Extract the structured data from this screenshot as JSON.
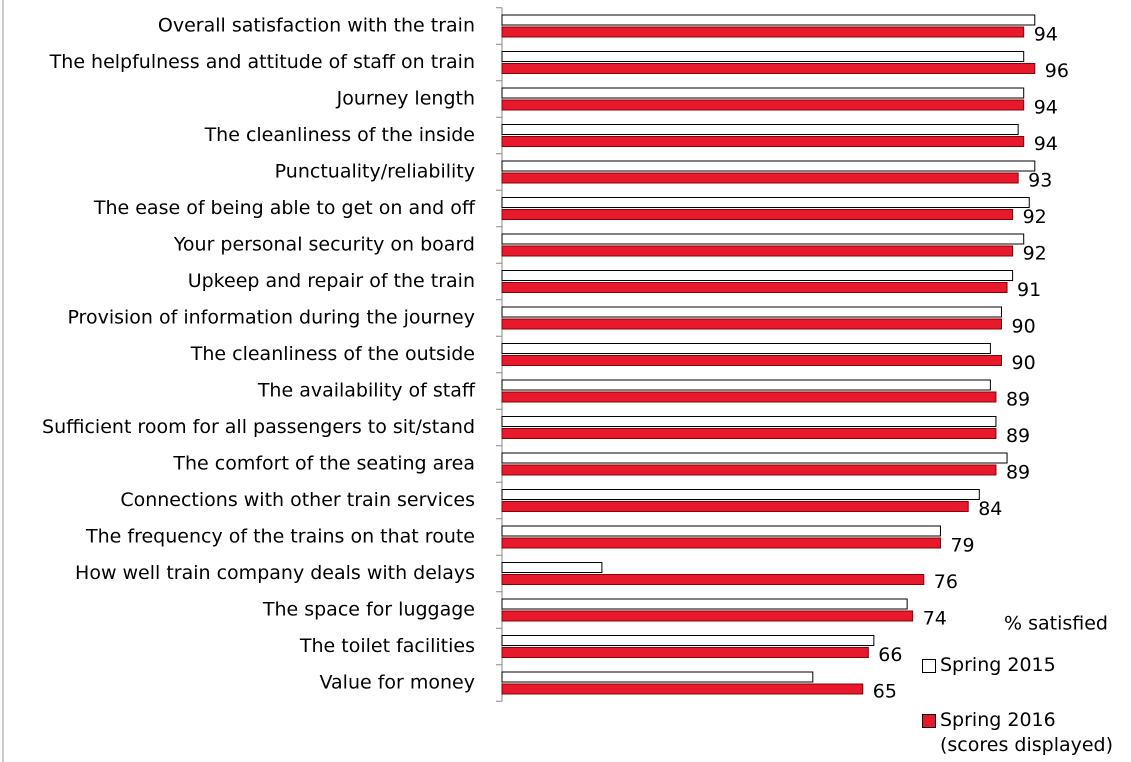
{
  "chart_data": {
    "type": "hbar",
    "categories": [
      "Overall satisfaction with the train",
      "The helpfulness and attitude of staff on train",
      "Journey length",
      "The cleanliness of the inside",
      "Punctuality/reliability",
      "The ease of being able to get on and off",
      "Your personal security on board",
      "Upkeep and repair of the train",
      "Provision of information during the journey",
      "The cleanliness of the outside",
      "The availability of staff",
      "Sufficient room for all passengers to sit/stand",
      "The comfort of the seating area",
      "Connections with other train services",
      "The frequency of the trains on that route",
      "How well train company deals with delays",
      "The space for luggage",
      "The toilet facilities",
      "Value for money"
    ],
    "series": [
      {
        "name": "Spring 2015",
        "color": "#ffffff",
        "values": [
          96,
          94,
          94,
          93,
          96,
          95,
          94,
          92,
          90,
          88,
          88,
          89,
          91,
          86,
          79,
          18,
          73,
          67,
          56
        ]
      },
      {
        "name": "Spring 2016 (scores displayed)",
        "color": "#e8192c",
        "values": [
          94,
          96,
          94,
          94,
          93,
          92,
          92,
          91,
          90,
          90,
          89,
          89,
          89,
          84,
          79,
          76,
          74,
          66,
          65
        ]
      }
    ],
    "legend_title": "% satisfied"
  }
}
